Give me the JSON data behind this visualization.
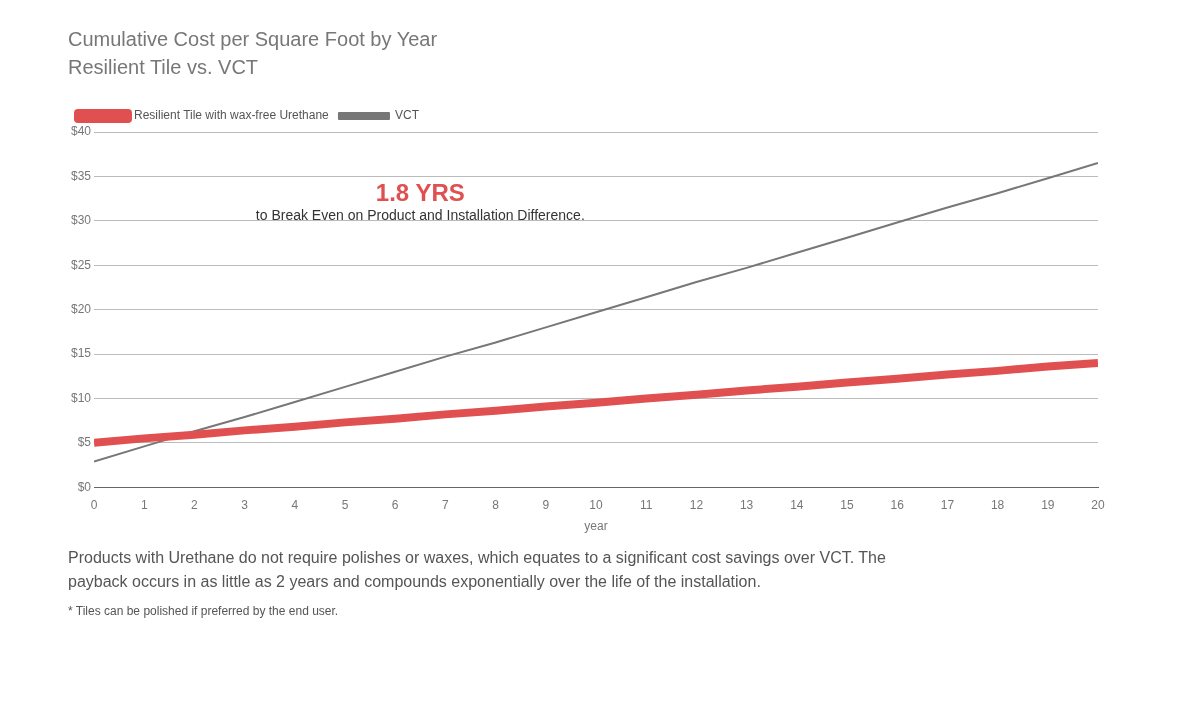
{
  "chart_data": {
    "type": "line",
    "title": "Cumulative Cost per Square Foot by Year",
    "subtitle": "Resilient Tile vs. VCT",
    "xlabel": "year",
    "x": [
      0,
      1,
      2,
      3,
      4,
      5,
      6,
      7,
      8,
      9,
      10,
      11,
      12,
      13,
      14,
      15,
      16,
      17,
      18,
      19,
      20
    ],
    "series": [
      {
        "name": "Resilient Tile with wax-free Urethane",
        "color": "#e05050",
        "values": [
          5.0,
          5.5,
          5.9,
          6.4,
          6.8,
          7.3,
          7.7,
          8.2,
          8.6,
          9.1,
          9.5,
          10.0,
          10.4,
          10.9,
          11.3,
          11.8,
          12.2,
          12.7,
          13.1,
          13.6,
          14.0
        ]
      },
      {
        "name": "VCT",
        "color": "#777777",
        "values": [
          2.9,
          4.6,
          6.3,
          7.9,
          9.6,
          11.3,
          13.0,
          14.7,
          16.3,
          18.0,
          19.7,
          21.4,
          23.1,
          24.7,
          26.4,
          28.1,
          29.8,
          31.5,
          33.1,
          34.8,
          36.5
        ]
      }
    ],
    "xlim": [
      0,
      20
    ],
    "xticks": [
      0,
      1,
      2,
      3,
      4,
      5,
      6,
      7,
      8,
      9,
      10,
      11,
      12,
      13,
      14,
      15,
      16,
      17,
      18,
      19,
      20
    ],
    "ylim": [
      0,
      40
    ],
    "yticks": [
      {
        "value": 0,
        "label": "$0"
      },
      {
        "value": 5,
        "label": "$5"
      },
      {
        "value": 10,
        "label": "$10"
      },
      {
        "value": 15,
        "label": "$15"
      },
      {
        "value": 20,
        "label": "$20"
      },
      {
        "value": 25,
        "label": "$25"
      },
      {
        "value": 30,
        "label": "$30"
      },
      {
        "value": 35,
        "label": "$35"
      },
      {
        "value": 40,
        "label": "$40"
      }
    ],
    "grid": "y",
    "legend": "top left",
    "marker": "none",
    "line_style": "solid",
    "annotations": [
      "1.8 YRS",
      "to Break Even on Product and Installation Difference.",
      "Products with Urethane do not require polishes or waxes, which equates to a significant cost savings over VCT. The payback occurs in as little as 2 years and compounds exponentially over the life of the installation.",
      "* Tiles can be polished if preferred by the end user."
    ]
  }
}
